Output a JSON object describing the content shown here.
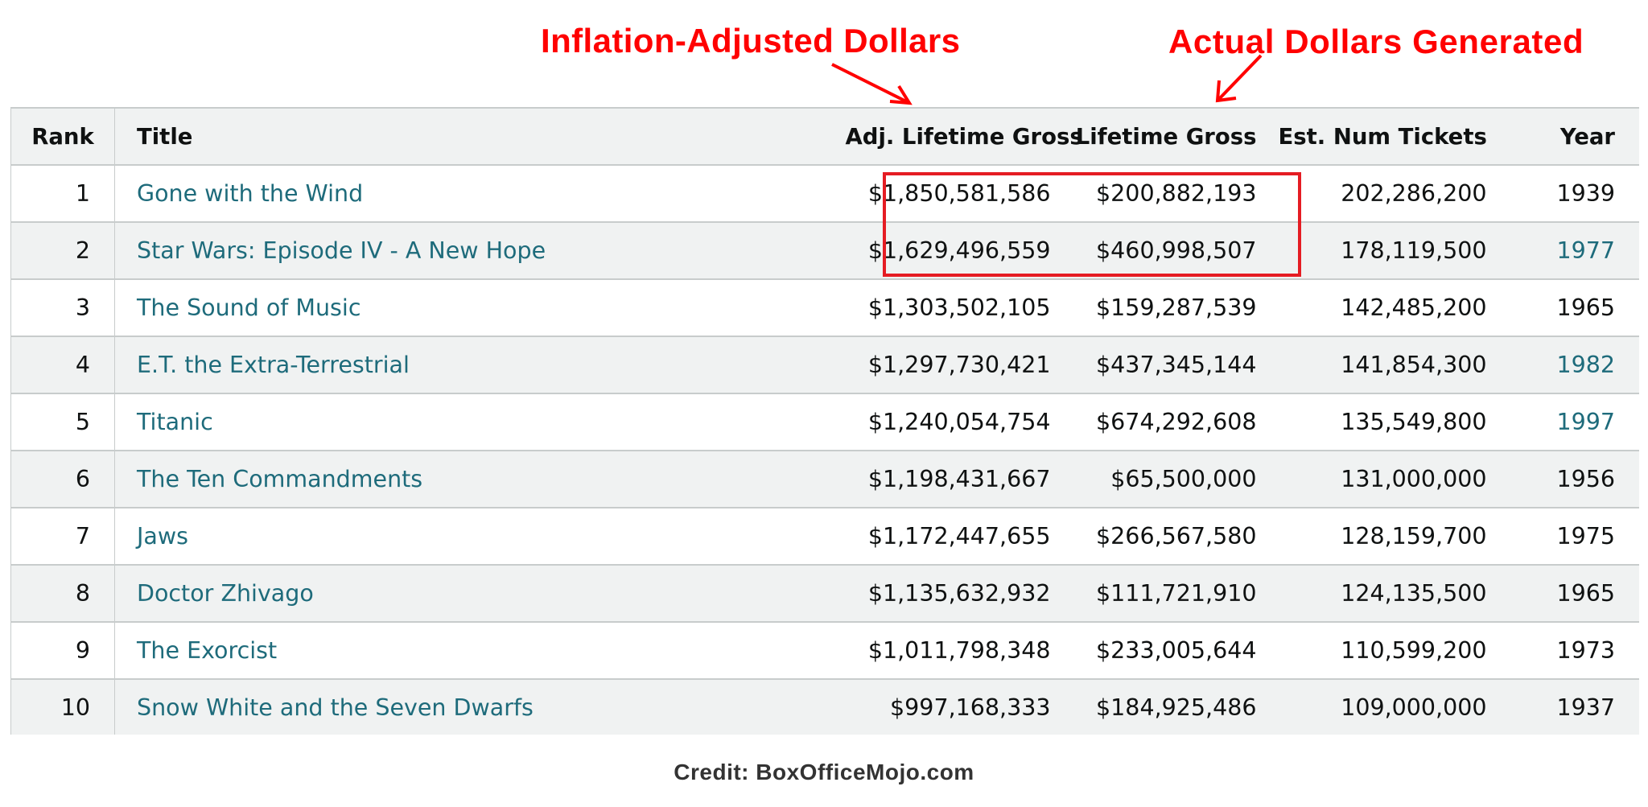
{
  "annotations": {
    "left": "Inflation-Adjusted Dollars",
    "right": "Actual Dollars Generated",
    "color": "#ff0000"
  },
  "table": {
    "headers": {
      "rank": "Rank",
      "title": "Title",
      "adj_gross": "Adj. Lifetime Gross",
      "gross": "Lifetime Gross",
      "tickets": "Est. Num Tickets",
      "year": "Year"
    },
    "rows": [
      {
        "rank": "1",
        "title": "Gone with the Wind",
        "adj_gross": "$1,850,581,586",
        "gross": "$200,882,193",
        "tickets": "202,286,200",
        "year": "1939"
      },
      {
        "rank": "2",
        "title": "Star Wars: Episode IV - A New Hope",
        "adj_gross": "$1,629,496,559",
        "gross": "$460,998,507",
        "tickets": "178,119,500",
        "year": "1977"
      },
      {
        "rank": "3",
        "title": "The Sound of Music",
        "adj_gross": "$1,303,502,105",
        "gross": "$159,287,539",
        "tickets": "142,485,200",
        "year": "1965"
      },
      {
        "rank": "4",
        "title": "E.T. the Extra-Terrestrial",
        "adj_gross": "$1,297,730,421",
        "gross": "$437,345,144",
        "tickets": "141,854,300",
        "year": "1982"
      },
      {
        "rank": "5",
        "title": "Titanic",
        "adj_gross": "$1,240,054,754",
        "gross": "$674,292,608",
        "tickets": "135,549,800",
        "year": "1997"
      },
      {
        "rank": "6",
        "title": "The Ten Commandments",
        "adj_gross": "$1,198,431,667",
        "gross": "$65,500,000",
        "tickets": "131,000,000",
        "year": "1956"
      },
      {
        "rank": "7",
        "title": "Jaws",
        "adj_gross": "$1,172,447,655",
        "gross": "$266,567,580",
        "tickets": "128,159,700",
        "year": "1975"
      },
      {
        "rank": "8",
        "title": "Doctor Zhivago",
        "adj_gross": "$1,135,632,932",
        "gross": "$111,721,910",
        "tickets": "124,135,500",
        "year": "1965"
      },
      {
        "rank": "9",
        "title": "The Exorcist",
        "adj_gross": "$1,011,798,348",
        "gross": "$233,005,644",
        "tickets": "110,599,200",
        "year": "1973"
      },
      {
        "rank": "10",
        "title": "Snow White and the Seven Dwarfs",
        "adj_gross": "$997,168,333",
        "gross": "$184,925,486",
        "tickets": "109,000,000",
        "year": "1937"
      }
    ],
    "link_color": "#1e6b7b",
    "stripe_color": "#f0f2f2"
  },
  "credit": "Credit: BoxOfficeMojo.com"
}
